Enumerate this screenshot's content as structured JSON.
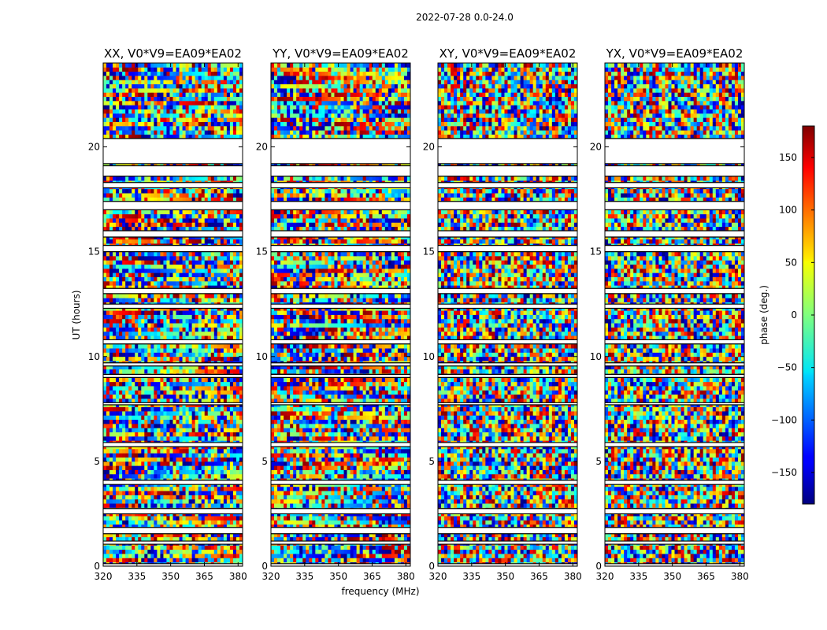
{
  "chart_data": {
    "type": "heatmap",
    "title": "2022-07-28 0.0-24.0",
    "xlabel": "frequency (MHz)",
    "ylabel": "UT (hours)",
    "colorbar_label": "phase (deg.)",
    "colormap": "jet",
    "xlim": [
      320,
      382
    ],
    "ylim": [
      0,
      24
    ],
    "clim": [
      -180,
      180
    ],
    "x_ticks": [
      320,
      335,
      350,
      365,
      380
    ],
    "y_ticks": [
      0,
      5,
      10,
      15,
      20
    ],
    "colorbar_ticks": [
      150,
      100,
      50,
      0,
      -50,
      -100,
      -150
    ],
    "panels": [
      {
        "title": "XX, V0*V9=EA09*EA02"
      },
      {
        "title": "YY, V0*V9=EA09*EA02"
      },
      {
        "title": "XY, V0*V9=EA09*EA02"
      },
      {
        "title": "YX, V0*V9=EA09*EA02"
      }
    ],
    "flagged_ut_hours": [
      [
        0.0,
        0.12
      ],
      [
        1.05,
        1.2
      ],
      [
        1.55,
        1.85
      ],
      [
        2.5,
        2.75
      ],
      [
        3.9,
        4.1
      ],
      [
        5.7,
        5.9
      ],
      [
        7.7,
        7.8
      ],
      [
        9.0,
        9.15
      ],
      [
        9.55,
        9.7
      ],
      [
        10.6,
        10.8
      ],
      [
        12.3,
        12.5
      ],
      [
        13.0,
        13.25
      ],
      [
        15.0,
        15.3
      ],
      [
        15.7,
        16.0
      ],
      [
        17.0,
        17.4
      ],
      [
        18.05,
        18.3
      ],
      [
        18.6,
        19.1
      ],
      [
        19.2,
        20.4
      ]
    ]
  }
}
